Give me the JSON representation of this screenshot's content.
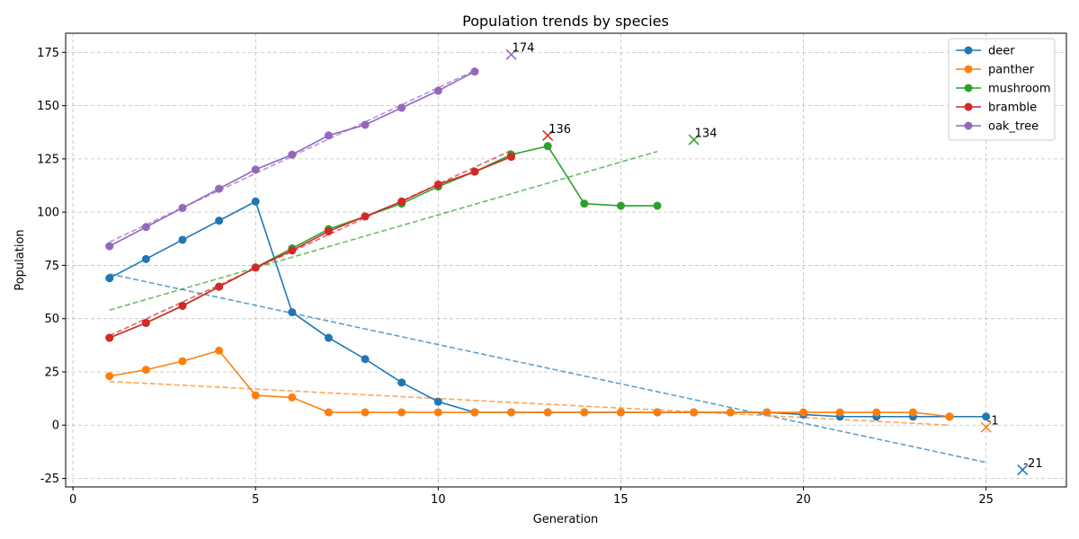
{
  "chart_data": {
    "type": "line",
    "title": "Population trends by species",
    "xlabel": "Generation",
    "ylabel": "Population",
    "xlim": [
      -0.2,
      27.2
    ],
    "ylim": [
      -29,
      184
    ],
    "xticks": [
      0,
      5,
      10,
      15,
      20,
      25
    ],
    "yticks": [
      -25,
      0,
      25,
      50,
      75,
      100,
      125,
      150,
      175
    ],
    "grid": true,
    "legend_position": "top-right",
    "series": [
      {
        "name": "deer",
        "color": "#1f77b4",
        "x": [
          1,
          2,
          3,
          4,
          5,
          6,
          7,
          8,
          9,
          10,
          11,
          12,
          13,
          14,
          15,
          16,
          17,
          18,
          19,
          20,
          21,
          22,
          23,
          24,
          25
        ],
        "values": [
          69,
          78,
          87,
          96,
          105,
          53,
          41,
          31,
          20,
          11,
          6,
          6,
          6,
          6,
          6,
          6,
          6,
          6,
          6,
          5,
          4,
          4,
          4,
          4,
          4
        ],
        "trend": {
          "x": [
            1,
            25
          ],
          "y": [
            71,
            -17.5
          ]
        },
        "forecast": {
          "x": 26,
          "y": -21,
          "label": "-21"
        }
      },
      {
        "name": "panther",
        "color": "#ff7f0e",
        "x": [
          1,
          2,
          3,
          4,
          5,
          6,
          7,
          8,
          9,
          10,
          11,
          12,
          13,
          14,
          15,
          16,
          17,
          18,
          19,
          20,
          21,
          22,
          23,
          24
        ],
        "values": [
          23,
          26,
          30,
          35,
          14,
          13,
          6,
          6,
          6,
          6,
          6,
          6,
          6,
          6,
          6,
          6,
          6,
          6,
          6,
          6,
          6,
          6,
          6,
          4
        ],
        "trend": {
          "x": [
            1,
            24
          ],
          "y": [
            20.5,
            0
          ]
        },
        "forecast": {
          "x": 25,
          "y": -1,
          "label": "-1"
        }
      },
      {
        "name": "mushroom",
        "color": "#2ca02c",
        "x": [
          1,
          2,
          3,
          4,
          5,
          6,
          7,
          8,
          9,
          10,
          11,
          12,
          13,
          14,
          15,
          16
        ],
        "values": [
          41,
          48,
          56,
          65,
          74,
          83,
          92,
          98,
          104,
          112,
          119,
          127,
          131,
          104,
          103,
          103
        ],
        "trend": {
          "x": [
            1,
            16
          ],
          "y": [
            54,
            128.5
          ]
        },
        "forecast": {
          "x": 17,
          "y": 134,
          "label": "134"
        }
      },
      {
        "name": "bramble",
        "color": "#d62728",
        "x": [
          1,
          2,
          3,
          4,
          5,
          6,
          7,
          8,
          9,
          10,
          11,
          12
        ],
        "values": [
          41,
          48,
          56,
          65,
          74,
          82,
          91,
          98,
          105,
          113,
          119,
          126
        ],
        "trend": {
          "x": [
            1,
            12
          ],
          "y": [
            42,
            129
          ]
        },
        "forecast": {
          "x": 13,
          "y": 136,
          "label": "136"
        }
      },
      {
        "name": "oak_tree",
        "color": "#9467bd",
        "x": [
          1,
          2,
          3,
          4,
          5,
          6,
          7,
          8,
          9,
          10,
          11
        ],
        "values": [
          84,
          93,
          102,
          111,
          120,
          127,
          136,
          141,
          149,
          157,
          166
        ],
        "trend": {
          "x": [
            1,
            11
          ],
          "y": [
            86,
            166.5
          ]
        },
        "forecast": {
          "x": 12,
          "y": 174,
          "label": "174"
        }
      }
    ]
  }
}
